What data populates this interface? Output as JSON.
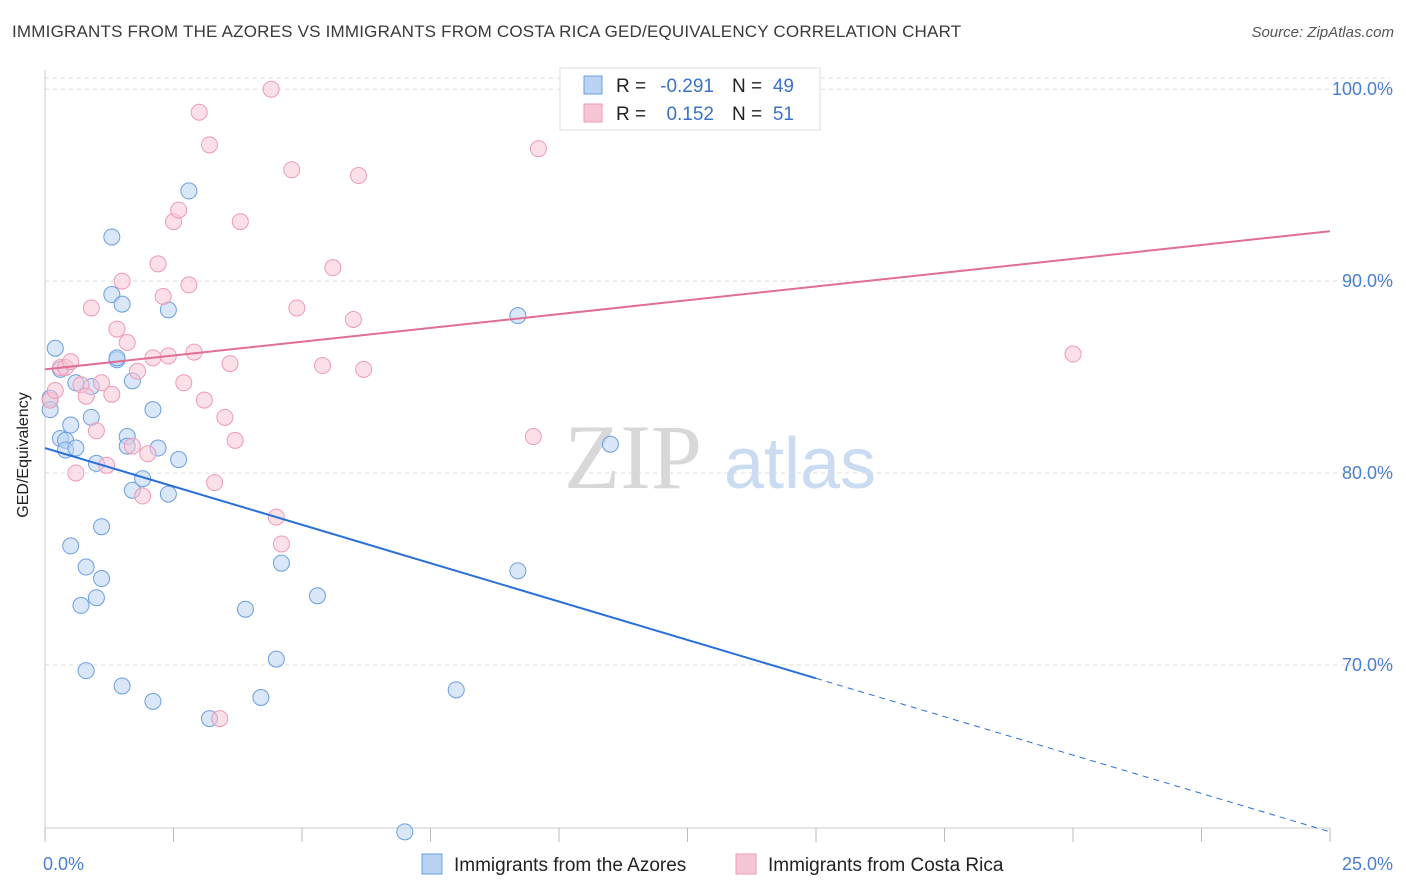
{
  "title": "IMMIGRANTS FROM THE AZORES VS IMMIGRANTS FROM COSTA RICA GED/EQUIVALENCY CORRELATION CHART",
  "source": "Source: ZipAtlas.com",
  "watermark": {
    "zip": "ZIP",
    "atlas": "atlas"
  },
  "chart_data": {
    "type": "scatter",
    "xlabel": "",
    "ylabel": "GED/Equivalency",
    "xlim": [
      0,
      25
    ],
    "ylim": [
      61.5,
      101
    ],
    "x_tick_labels": [
      "0.0%",
      "25.0%"
    ],
    "y_ticks": [
      70,
      80,
      90,
      100
    ],
    "y_tick_labels": [
      "70.0%",
      "80.0%",
      "90.0%",
      "100.0%"
    ],
    "grid": true,
    "legend_position": "bottom",
    "stats_box": {
      "rows": [
        {
          "r_label": "R =",
          "r_value": "-0.291",
          "n_label": "N =",
          "n_value": "49"
        },
        {
          "r_label": "R =",
          "r_value": "0.152",
          "n_label": "N =",
          "n_value": "51"
        }
      ]
    },
    "series": [
      {
        "name": "Immigrants from the Azores",
        "color": "#6a9fe0",
        "fill": "#b9d3f3",
        "line_color": "#2970d6",
        "trend": {
          "x0": 0,
          "y0": 81.3,
          "x1": 15,
          "y1": 69.3,
          "dash_to_x": 25,
          "dash_to_y": 61.3
        },
        "points": [
          [
            0.1,
            83.9
          ],
          [
            0.1,
            83.3
          ],
          [
            0.2,
            86.5
          ],
          [
            0.3,
            81.8
          ],
          [
            0.3,
            85.4
          ],
          [
            0.4,
            81.7
          ],
          [
            0.4,
            81.2
          ],
          [
            0.5,
            82.5
          ],
          [
            0.5,
            76.2
          ],
          [
            0.6,
            81.3
          ],
          [
            0.6,
            84.7
          ],
          [
            0.7,
            73.1
          ],
          [
            0.8,
            75.1
          ],
          [
            0.8,
            69.7
          ],
          [
            0.9,
            82.9
          ],
          [
            0.9,
            84.5
          ],
          [
            1.0,
            80.5
          ],
          [
            1.0,
            73.5
          ],
          [
            1.1,
            77.2
          ],
          [
            1.1,
            74.5
          ],
          [
            1.3,
            89.3
          ],
          [
            1.3,
            92.3
          ],
          [
            1.4,
            85.9
          ],
          [
            1.5,
            68.9
          ],
          [
            1.5,
            88.8
          ],
          [
            1.6,
            81.9
          ],
          [
            1.6,
            81.4
          ],
          [
            1.7,
            84.8
          ],
          [
            1.7,
            79.1
          ],
          [
            1.9,
            79.7
          ],
          [
            2.1,
            83.3
          ],
          [
            2.1,
            68.1
          ],
          [
            2.2,
            81.3
          ],
          [
            2.4,
            78.9
          ],
          [
            2.4,
            88.5
          ],
          [
            2.6,
            80.7
          ],
          [
            2.8,
            94.7
          ],
          [
            3.2,
            67.2
          ],
          [
            3.9,
            72.9
          ],
          [
            4.2,
            68.3
          ],
          [
            4.5,
            70.3
          ],
          [
            4.6,
            75.3
          ],
          [
            5.3,
            73.6
          ],
          [
            7.0,
            61.3
          ],
          [
            8.0,
            68.7
          ],
          [
            9.2,
            88.2
          ],
          [
            9.2,
            74.9
          ],
          [
            11.0,
            81.5
          ],
          [
            1.4,
            86.0
          ]
        ]
      },
      {
        "name": "Immigrants from Costa Rica",
        "color": "#ee9ab6",
        "fill": "#f7c6d6",
        "line_color": "#e06e97",
        "trend": {
          "x0": 0,
          "y0": 85.4,
          "x1": 25,
          "y1": 92.6
        },
        "points": [
          [
            0.1,
            83.8
          ],
          [
            0.2,
            84.3
          ],
          [
            0.3,
            85.5
          ],
          [
            0.4,
            85.5
          ],
          [
            0.5,
            85.8
          ],
          [
            0.6,
            80.0
          ],
          [
            0.7,
            84.6
          ],
          [
            0.8,
            84.0
          ],
          [
            0.9,
            88.6
          ],
          [
            1.0,
            82.2
          ],
          [
            1.1,
            84.7
          ],
          [
            1.2,
            80.4
          ],
          [
            1.3,
            84.1
          ],
          [
            1.4,
            87.5
          ],
          [
            1.5,
            90.0
          ],
          [
            1.6,
            86.8
          ],
          [
            1.7,
            81.4
          ],
          [
            1.8,
            85.3
          ],
          [
            1.9,
            78.8
          ],
          [
            2.0,
            81.0
          ],
          [
            2.1,
            86.0
          ],
          [
            2.2,
            90.9
          ],
          [
            2.3,
            89.2
          ],
          [
            2.4,
            86.1
          ],
          [
            2.5,
            93.1
          ],
          [
            2.6,
            93.7
          ],
          [
            2.7,
            84.7
          ],
          [
            2.8,
            89.8
          ],
          [
            2.9,
            86.3
          ],
          [
            3.0,
            98.8
          ],
          [
            3.1,
            83.8
          ],
          [
            3.2,
            97.1
          ],
          [
            3.3,
            79.5
          ],
          [
            3.4,
            67.2
          ],
          [
            3.5,
            82.9
          ],
          [
            3.6,
            85.7
          ],
          [
            3.7,
            81.7
          ],
          [
            3.8,
            93.1
          ],
          [
            4.4,
            100.0
          ],
          [
            4.5,
            77.7
          ],
          [
            4.6,
            76.3
          ],
          [
            4.8,
            95.8
          ],
          [
            4.9,
            88.6
          ],
          [
            5.4,
            85.6
          ],
          [
            5.6,
            90.7
          ],
          [
            6.0,
            88.0
          ],
          [
            6.1,
            95.5
          ],
          [
            6.2,
            85.4
          ],
          [
            9.5,
            81.9
          ],
          [
            9.6,
            96.9
          ],
          [
            20.0,
            86.2
          ]
        ]
      }
    ]
  }
}
